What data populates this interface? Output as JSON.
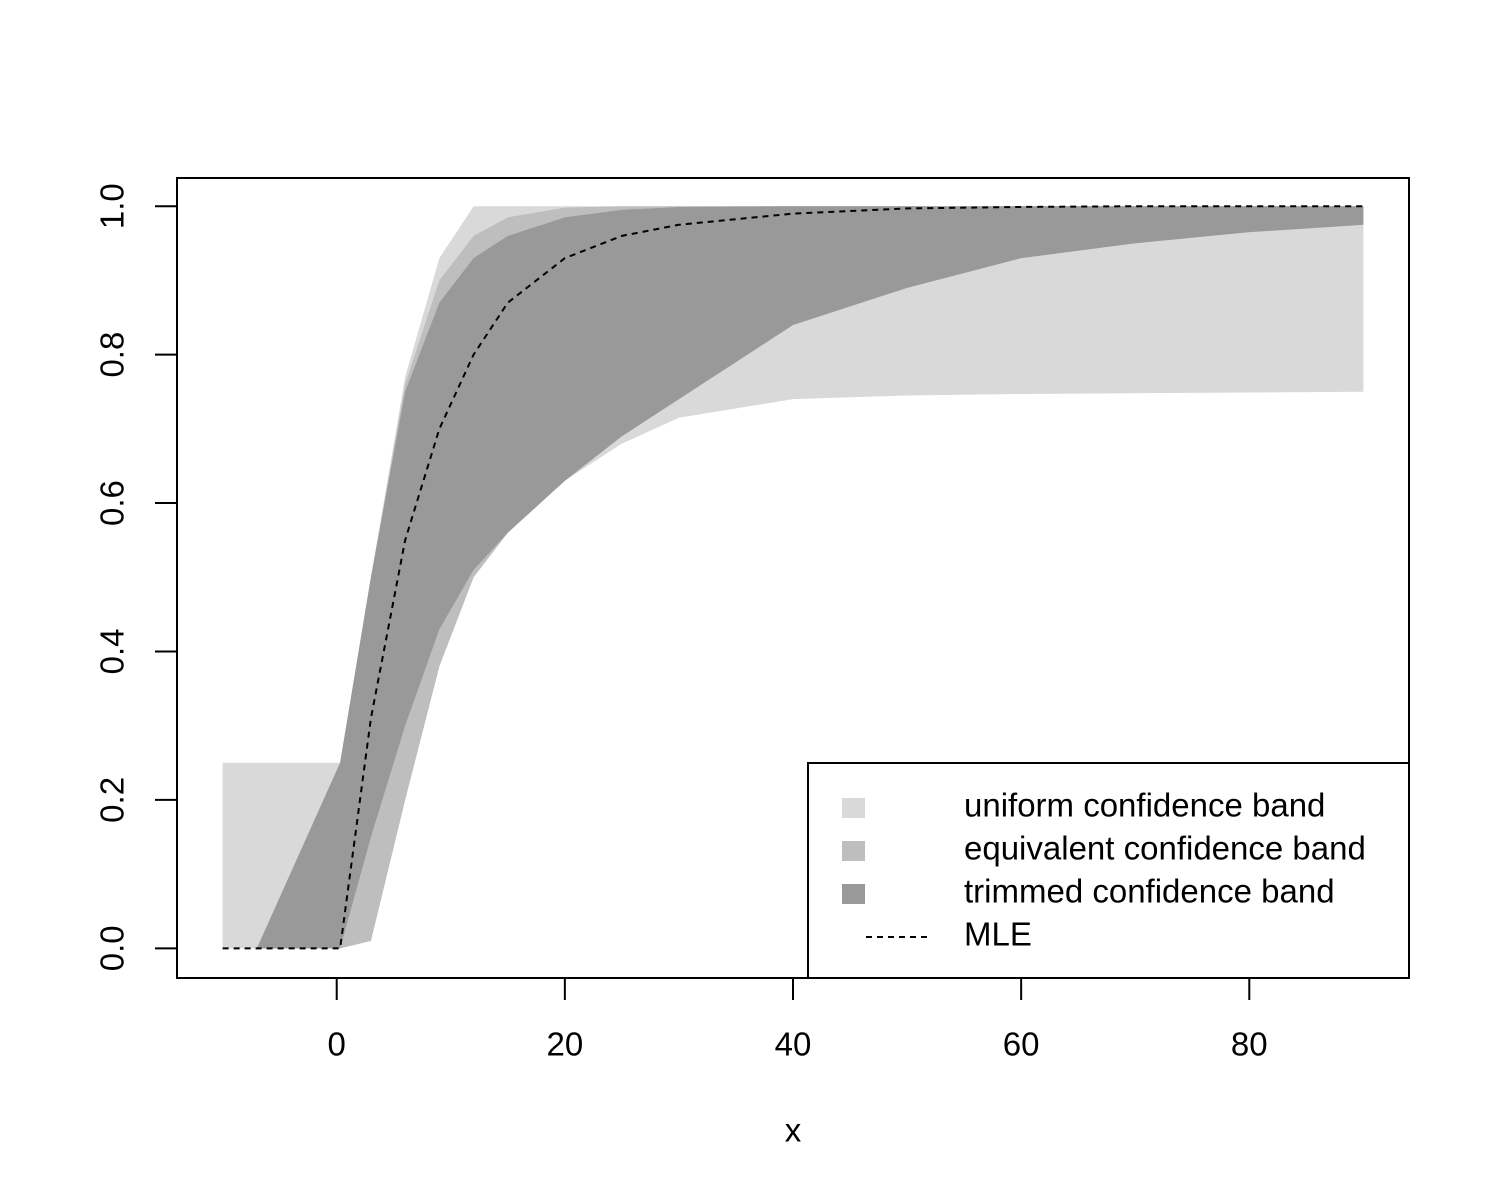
{
  "chart_data": {
    "type": "area",
    "x_label": "x",
    "x": [
      -10,
      -7,
      0.3,
      3,
      6,
      9,
      12,
      15,
      20,
      25,
      30,
      40,
      50,
      60,
      70,
      80,
      90
    ],
    "xlim": [
      -14,
      94
    ],
    "ylim": [
      -0.04,
      1.038
    ],
    "xticks": [
      0,
      20,
      40,
      60,
      80
    ],
    "yticks": [
      {
        "value": 0,
        "label": "0.0"
      },
      {
        "value": 0.2,
        "label": "0.2"
      },
      {
        "value": 0.4,
        "label": "0.4"
      },
      {
        "value": 0.6,
        "label": "0.6"
      },
      {
        "value": 0.8,
        "label": "0.8"
      },
      {
        "value": 1,
        "label": "1.0"
      }
    ],
    "legend": "bottom-right",
    "series": [
      {
        "name": "uniform confidence band",
        "color": "#d9d9d9",
        "lower": [
          0,
          0,
          0,
          0.01,
          0.2,
          0.38,
          0.5,
          0.56,
          0.63,
          0.68,
          0.715,
          0.74,
          0.745,
          0.747,
          0.748,
          0.749,
          0.75
        ],
        "upper": [
          0.25,
          0.25,
          0.25,
          0.5,
          0.77,
          0.93,
          1,
          1,
          1,
          1,
          1,
          1,
          1,
          1,
          1,
          1,
          1
        ]
      },
      {
        "name": "equivalent confidence band",
        "color": "#bebebe",
        "lower": [
          null,
          0,
          0,
          0.01,
          0.2,
          0.38,
          0.5,
          0.56,
          0.63,
          0.69,
          0.74,
          0.84,
          0.89,
          0.93,
          0.95,
          0.965,
          0.975
        ],
        "upper": [
          null,
          0,
          0.25,
          0.5,
          0.76,
          0.9,
          0.96,
          0.985,
          0.998,
          1,
          1,
          1,
          1,
          1,
          1,
          1,
          1
        ]
      },
      {
        "name": "trimmed confidence band",
        "color": "#999999",
        "lower": [
          null,
          0,
          0,
          0.15,
          0.3,
          0.43,
          0.51,
          0.56,
          0.63,
          0.69,
          0.74,
          0.84,
          0.89,
          0.93,
          0.95,
          0.965,
          0.975
        ],
        "upper": [
          null,
          0,
          0.25,
          0.5,
          0.75,
          0.87,
          0.93,
          0.96,
          0.985,
          0.995,
          0.999,
          1,
          1,
          1,
          1,
          1,
          1
        ]
      },
      {
        "name": "MLE",
        "color": "#000000",
        "linestyle": "dashed",
        "values": [
          0,
          0,
          0,
          0.31,
          0.55,
          0.7,
          0.8,
          0.87,
          0.93,
          0.96,
          0.975,
          0.99,
          0.997,
          0.999,
          1,
          1,
          1
        ]
      }
    ]
  }
}
